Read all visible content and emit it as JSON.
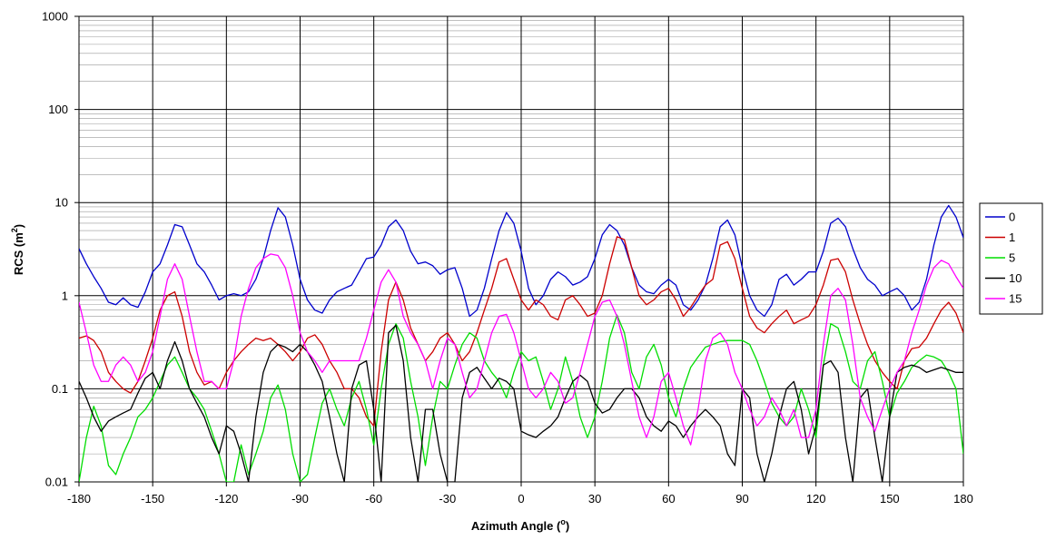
{
  "chart_data": {
    "type": "line",
    "xlabel": "Azimuth Angle",
    "xlabel_unit": "o",
    "ylabel": "RCS (m",
    "ylabel_unit": "2",
    "ylabel_close": ")",
    "xlim": [
      -180,
      180
    ],
    "ylim": [
      0.01,
      1000
    ],
    "yscale": "log",
    "x_ticks": [
      -180,
      -150,
      -120,
      -90,
      -60,
      -30,
      0,
      30,
      60,
      90,
      120,
      150,
      180
    ],
    "x_tick_labels": [
      "-180",
      "-150",
      "-120",
      "-90",
      "-60",
      "-30",
      "0",
      "30",
      "60",
      "90",
      "120",
      "150",
      "180"
    ],
    "y_ticks": [
      0.01,
      0.1,
      1,
      10,
      100,
      1000
    ],
    "y_tick_labels": [
      "0.01",
      "0.1",
      "1",
      "10",
      "100",
      "1000"
    ],
    "grid": true,
    "legend": "right",
    "series": [
      {
        "name": "0",
        "color": "#0000CC",
        "x": [
          -180,
          -177,
          -174,
          -171,
          -168,
          -165,
          -162,
          -159,
          -156,
          -153,
          -150,
          -147,
          -144,
          -141,
          -138,
          -135,
          -132,
          -129,
          -126,
          -123,
          -120,
          -117,
          -114,
          -111,
          -108,
          -105,
          -102,
          -99,
          -96,
          -93,
          -90,
          -87,
          -84,
          -81,
          -78,
          -75,
          -72,
          -69,
          -66,
          -63,
          -60,
          -57,
          -54,
          -51,
          -48,
          -45,
          -42,
          -39,
          -36,
          -33,
          -30,
          -27,
          -24,
          -21,
          -18,
          -15,
          -12,
          -9,
          -6,
          -3,
          0,
          3,
          6,
          9,
          12,
          15,
          18,
          21,
          24,
          27,
          30,
          33,
          36,
          39,
          42,
          45,
          48,
          51,
          54,
          57,
          60,
          63,
          66,
          69,
          72,
          75,
          78,
          81,
          84,
          87,
          90,
          93,
          96,
          99,
          102,
          105,
          108,
          111,
          114,
          117,
          120,
          123,
          126,
          129,
          132,
          135,
          138,
          141,
          144,
          147,
          150,
          153,
          156,
          159,
          162,
          165,
          168,
          171,
          174,
          177,
          180
        ],
        "y": [
          3.2,
          2.2,
          1.6,
          1.2,
          0.85,
          0.8,
          0.95,
          0.8,
          0.75,
          1.1,
          1.8,
          2.2,
          3.5,
          5.8,
          5.5,
          3.5,
          2.2,
          1.8,
          1.3,
          0.9,
          1.0,
          1.05,
          1.0,
          1.1,
          1.5,
          2.5,
          5.0,
          8.8,
          7.0,
          3.5,
          1.5,
          0.9,
          0.7,
          0.65,
          0.9,
          1.1,
          1.2,
          1.3,
          1.8,
          2.5,
          2.6,
          3.5,
          5.5,
          6.5,
          5.0,
          3.0,
          2.2,
          2.3,
          2.1,
          1.7,
          1.9,
          2.0,
          1.2,
          0.6,
          0.7,
          1.2,
          2.5,
          5.0,
          7.8,
          6.0,
          3.0,
          1.2,
          0.8,
          1.0,
          1.5,
          1.8,
          1.6,
          1.3,
          1.4,
          1.6,
          2.5,
          4.5,
          5.8,
          5.0,
          3.5,
          2.0,
          1.3,
          1.1,
          1.05,
          1.3,
          1.5,
          1.3,
          0.8,
          0.7,
          0.9,
          1.3,
          2.5,
          5.5,
          6.5,
          4.5,
          2.0,
          1.0,
          0.7,
          0.6,
          0.8,
          1.5,
          1.7,
          1.3,
          1.5,
          1.8,
          1.8,
          3.0,
          6.0,
          6.8,
          5.5,
          3.2,
          2.0,
          1.5,
          1.3,
          1.0,
          1.1,
          1.2,
          1.0,
          0.7,
          0.85,
          1.5,
          3.5,
          7.0,
          9.3,
          7.0,
          4.2
        ]
      },
      {
        "name": "1",
        "color": "#CC0000",
        "x": [
          -180,
          -177,
          -174,
          -171,
          -168,
          -165,
          -162,
          -159,
          -156,
          -153,
          -150,
          -147,
          -144,
          -141,
          -138,
          -135,
          -132,
          -129,
          -126,
          -123,
          -120,
          -117,
          -114,
          -111,
          -108,
          -105,
          -102,
          -99,
          -96,
          -93,
          -90,
          -87,
          -84,
          -81,
          -78,
          -75,
          -72,
          -69,
          -66,
          -63,
          -60,
          -57,
          -54,
          -51,
          -48,
          -45,
          -42,
          -39,
          -36,
          -33,
          -30,
          -27,
          -24,
          -21,
          -18,
          -15,
          -12,
          -9,
          -6,
          -3,
          0,
          3,
          6,
          9,
          12,
          15,
          18,
          21,
          24,
          27,
          30,
          33,
          36,
          39,
          42,
          45,
          48,
          51,
          54,
          57,
          60,
          63,
          66,
          69,
          72,
          75,
          78,
          81,
          84,
          87,
          90,
          93,
          96,
          99,
          102,
          105,
          108,
          111,
          114,
          117,
          120,
          123,
          126,
          129,
          132,
          135,
          138,
          141,
          144,
          147,
          150,
          153,
          156,
          159,
          162,
          165,
          168,
          171,
          174,
          177,
          180
        ],
        "y": [
          0.35,
          0.37,
          0.33,
          0.25,
          0.15,
          0.12,
          0.1,
          0.09,
          0.12,
          0.2,
          0.35,
          0.7,
          1.0,
          1.1,
          0.6,
          0.25,
          0.15,
          0.11,
          0.12,
          0.1,
          0.15,
          0.2,
          0.25,
          0.3,
          0.35,
          0.33,
          0.35,
          0.3,
          0.25,
          0.2,
          0.25,
          0.35,
          0.38,
          0.3,
          0.2,
          0.15,
          0.1,
          0.1,
          0.08,
          0.05,
          0.04,
          0.25,
          0.9,
          1.4,
          0.9,
          0.45,
          0.3,
          0.2,
          0.25,
          0.35,
          0.4,
          0.3,
          0.2,
          0.25,
          0.4,
          0.7,
          1.2,
          2.3,
          2.5,
          1.5,
          0.9,
          0.7,
          0.9,
          0.8,
          0.6,
          0.55,
          0.9,
          1.0,
          0.8,
          0.6,
          0.65,
          1.0,
          2.2,
          4.3,
          4.0,
          2.0,
          1.0,
          0.8,
          0.9,
          1.1,
          1.2,
          0.9,
          0.6,
          0.75,
          1.0,
          1.3,
          1.5,
          3.5,
          3.8,
          2.5,
          1.2,
          0.6,
          0.45,
          0.4,
          0.5,
          0.6,
          0.7,
          0.5,
          0.55,
          0.6,
          0.8,
          1.3,
          2.4,
          2.5,
          1.8,
          0.9,
          0.5,
          0.3,
          0.2,
          0.15,
          0.12,
          0.1,
          0.2,
          0.27,
          0.28,
          0.35,
          0.5,
          0.7,
          0.85,
          0.65,
          0.4
        ]
      },
      {
        "name": "5",
        "color": "#00DD00",
        "x": [
          -180,
          -177,
          -174,
          -171,
          -168,
          -165,
          -162,
          -159,
          -156,
          -153,
          -150,
          -147,
          -144,
          -141,
          -138,
          -135,
          -132,
          -129,
          -126,
          -123,
          -120,
          -117,
          -114,
          -111,
          -108,
          -105,
          -102,
          -99,
          -96,
          -93,
          -90,
          -87,
          -84,
          -81,
          -78,
          -75,
          -72,
          -69,
          -66,
          -63,
          -60,
          -57,
          -54,
          -51,
          -48,
          -45,
          -42,
          -39,
          -36,
          -33,
          -30,
          -27,
          -24,
          -21,
          -18,
          -15,
          -12,
          -9,
          -6,
          -3,
          0,
          3,
          6,
          9,
          12,
          15,
          18,
          21,
          24,
          27,
          30,
          33,
          36,
          39,
          42,
          45,
          48,
          51,
          54,
          57,
          60,
          63,
          66,
          69,
          72,
          75,
          78,
          81,
          84,
          87,
          90,
          93,
          96,
          99,
          102,
          105,
          108,
          111,
          114,
          117,
          120,
          123,
          126,
          129,
          132,
          135,
          138,
          141,
          144,
          147,
          150,
          153,
          156,
          159,
          162,
          165,
          168,
          171,
          174,
          177,
          180
        ],
        "y": [
          0.01,
          0.03,
          0.065,
          0.04,
          0.015,
          0.012,
          0.02,
          0.03,
          0.05,
          0.06,
          0.08,
          0.12,
          0.18,
          0.22,
          0.15,
          0.1,
          0.08,
          0.06,
          0.035,
          0.02,
          0.01,
          0.008,
          0.025,
          0.012,
          0.02,
          0.035,
          0.08,
          0.11,
          0.06,
          0.02,
          0.01,
          0.012,
          0.03,
          0.07,
          0.1,
          0.06,
          0.04,
          0.08,
          0.12,
          0.06,
          0.025,
          0.1,
          0.3,
          0.5,
          0.35,
          0.12,
          0.05,
          0.015,
          0.05,
          0.12,
          0.1,
          0.18,
          0.3,
          0.4,
          0.35,
          0.2,
          0.15,
          0.12,
          0.08,
          0.15,
          0.25,
          0.2,
          0.22,
          0.12,
          0.06,
          0.1,
          0.22,
          0.12,
          0.05,
          0.03,
          0.05,
          0.12,
          0.35,
          0.62,
          0.4,
          0.15,
          0.1,
          0.22,
          0.3,
          0.18,
          0.08,
          0.05,
          0.1,
          0.17,
          0.22,
          0.28,
          0.3,
          0.32,
          0.33,
          0.33,
          0.33,
          0.3,
          0.2,
          0.12,
          0.07,
          0.05,
          0.04,
          0.05,
          0.1,
          0.06,
          0.03,
          0.18,
          0.5,
          0.45,
          0.25,
          0.12,
          0.1,
          0.2,
          0.25,
          0.12,
          0.05,
          0.09,
          0.12,
          0.17,
          0.2,
          0.23,
          0.22,
          0.2,
          0.15,
          0.1,
          0.02
        ]
      },
      {
        "name": "10",
        "color": "#000000",
        "x": [
          -180,
          -177,
          -174,
          -171,
          -168,
          -165,
          -162,
          -159,
          -156,
          -153,
          -150,
          -147,
          -144,
          -141,
          -138,
          -135,
          -132,
          -129,
          -126,
          -123,
          -120,
          -117,
          -114,
          -111,
          -108,
          -105,
          -102,
          -99,
          -96,
          -93,
          -90,
          -87,
          -84,
          -81,
          -78,
          -75,
          -72,
          -69,
          -66,
          -63,
          -60,
          -57,
          -54,
          -51,
          -48,
          -45,
          -42,
          -39,
          -36,
          -33,
          -30,
          -27,
          -24,
          -21,
          -18,
          -15,
          -12,
          -9,
          -6,
          -3,
          0,
          3,
          6,
          9,
          12,
          15,
          18,
          21,
          24,
          27,
          30,
          33,
          36,
          39,
          42,
          45,
          48,
          51,
          54,
          57,
          60,
          63,
          66,
          69,
          72,
          75,
          78,
          81,
          84,
          87,
          90,
          93,
          96,
          99,
          102,
          105,
          108,
          111,
          114,
          117,
          120,
          123,
          126,
          129,
          132,
          135,
          138,
          141,
          144,
          147,
          150,
          153,
          156,
          159,
          162,
          165,
          168,
          171,
          174,
          177,
          180
        ],
        "y": [
          0.12,
          0.08,
          0.05,
          0.035,
          0.045,
          0.05,
          0.055,
          0.06,
          0.09,
          0.13,
          0.15,
          0.1,
          0.2,
          0.32,
          0.2,
          0.1,
          0.07,
          0.05,
          0.03,
          0.02,
          0.04,
          0.035,
          0.02,
          0.01,
          0.05,
          0.15,
          0.25,
          0.3,
          0.28,
          0.25,
          0.3,
          0.25,
          0.18,
          0.12,
          0.05,
          0.02,
          0.008,
          0.1,
          0.18,
          0.2,
          0.06,
          0.01,
          0.4,
          0.48,
          0.2,
          0.03,
          0.008,
          0.06,
          0.06,
          0.02,
          0.005,
          0.008,
          0.08,
          0.15,
          0.17,
          0.13,
          0.1,
          0.13,
          0.12,
          0.1,
          0.035,
          0.032,
          0.03,
          0.035,
          0.04,
          0.05,
          0.08,
          0.12,
          0.14,
          0.12,
          0.07,
          0.055,
          0.06,
          0.08,
          0.1,
          0.1,
          0.08,
          0.05,
          0.04,
          0.035,
          0.045,
          0.04,
          0.03,
          0.04,
          0.05,
          0.06,
          0.05,
          0.04,
          0.02,
          0.015,
          0.1,
          0.08,
          0.02,
          0.01,
          0.02,
          0.05,
          0.1,
          0.12,
          0.06,
          0.02,
          0.04,
          0.18,
          0.2,
          0.15,
          0.03,
          0.008,
          0.08,
          0.1,
          0.03,
          0.008,
          0.05,
          0.15,
          0.17,
          0.18,
          0.17,
          0.15,
          0.16,
          0.17,
          0.16,
          0.15,
          0.15
        ]
      },
      {
        "name": "15",
        "color": "#FF00FF",
        "x": [
          -180,
          -177,
          -174,
          -171,
          -168,
          -165,
          -162,
          -159,
          -156,
          -153,
          -150,
          -147,
          -144,
          -141,
          -138,
          -135,
          -132,
          -129,
          -126,
          -123,
          -120,
          -117,
          -114,
          -111,
          -108,
          -105,
          -102,
          -99,
          -96,
          -93,
          -90,
          -87,
          -84,
          -81,
          -78,
          -75,
          -72,
          -69,
          -66,
          -63,
          -60,
          -57,
          -54,
          -51,
          -48,
          -45,
          -42,
          -39,
          -36,
          -33,
          -30,
          -27,
          -24,
          -21,
          -18,
          -15,
          -12,
          -9,
          -6,
          -3,
          0,
          3,
          6,
          9,
          12,
          15,
          18,
          21,
          24,
          27,
          30,
          33,
          36,
          39,
          42,
          45,
          48,
          51,
          54,
          57,
          60,
          63,
          66,
          69,
          72,
          75,
          78,
          81,
          84,
          87,
          90,
          93,
          96,
          99,
          102,
          105,
          108,
          111,
          114,
          117,
          120,
          123,
          126,
          129,
          132,
          135,
          138,
          141,
          144,
          147,
          150,
          153,
          156,
          159,
          162,
          165,
          168,
          171,
          174,
          177,
          180
        ],
        "y": [
          0.85,
          0.4,
          0.18,
          0.12,
          0.12,
          0.18,
          0.22,
          0.18,
          0.12,
          0.15,
          0.25,
          0.6,
          1.5,
          2.2,
          1.5,
          0.6,
          0.25,
          0.12,
          0.12,
          0.1,
          0.1,
          0.2,
          0.6,
          1.2,
          2.0,
          2.5,
          2.8,
          2.7,
          2.0,
          1.0,
          0.4,
          0.25,
          0.2,
          0.15,
          0.2,
          0.2,
          0.2,
          0.2,
          0.2,
          0.35,
          0.7,
          1.4,
          1.9,
          1.4,
          0.6,
          0.4,
          0.3,
          0.2,
          0.1,
          0.2,
          0.35,
          0.3,
          0.15,
          0.08,
          0.1,
          0.2,
          0.4,
          0.6,
          0.63,
          0.4,
          0.2,
          0.1,
          0.08,
          0.1,
          0.15,
          0.12,
          0.07,
          0.08,
          0.15,
          0.3,
          0.6,
          0.85,
          0.9,
          0.6,
          0.3,
          0.12,
          0.05,
          0.03,
          0.05,
          0.12,
          0.15,
          0.08,
          0.04,
          0.025,
          0.06,
          0.2,
          0.35,
          0.4,
          0.3,
          0.15,
          0.1,
          0.06,
          0.04,
          0.05,
          0.08,
          0.06,
          0.04,
          0.06,
          0.03,
          0.03,
          0.06,
          0.3,
          1.0,
          1.2,
          0.9,
          0.3,
          0.08,
          0.05,
          0.035,
          0.06,
          0.1,
          0.15,
          0.2,
          0.4,
          0.7,
          1.3,
          2.0,
          2.4,
          2.2,
          1.6,
          1.2
        ]
      }
    ]
  }
}
